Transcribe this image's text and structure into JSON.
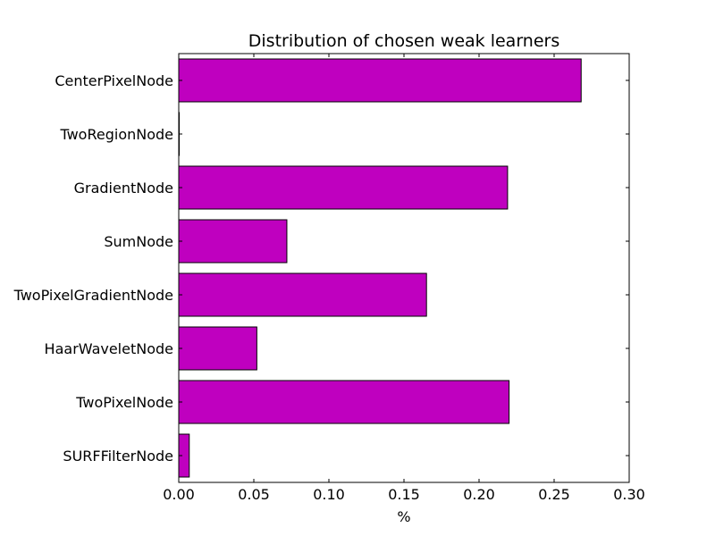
{
  "chart_data": {
    "type": "bar",
    "orientation": "horizontal",
    "title": "Distribution of chosen weak learners",
    "xlabel": "%",
    "ylabel": "",
    "xlim": [
      0.0,
      0.3
    ],
    "xticks": [
      "0.00",
      "0.05",
      "0.10",
      "0.15",
      "0.20",
      "0.25",
      "0.30"
    ],
    "categories": [
      "CenterPixelNode",
      "TwoRegionNode",
      "GradientNode",
      "SumNode",
      "TwoPixelGradientNode",
      "HaarWaveletNode",
      "TwoPixelNode",
      "SURFFilterNode"
    ],
    "values": [
      0.268,
      0.0,
      0.219,
      0.072,
      0.165,
      0.052,
      0.22,
      0.007
    ],
    "bar_color": "#bf00bf",
    "edge_color": "#000000",
    "grid": false,
    "legend": "none"
  }
}
